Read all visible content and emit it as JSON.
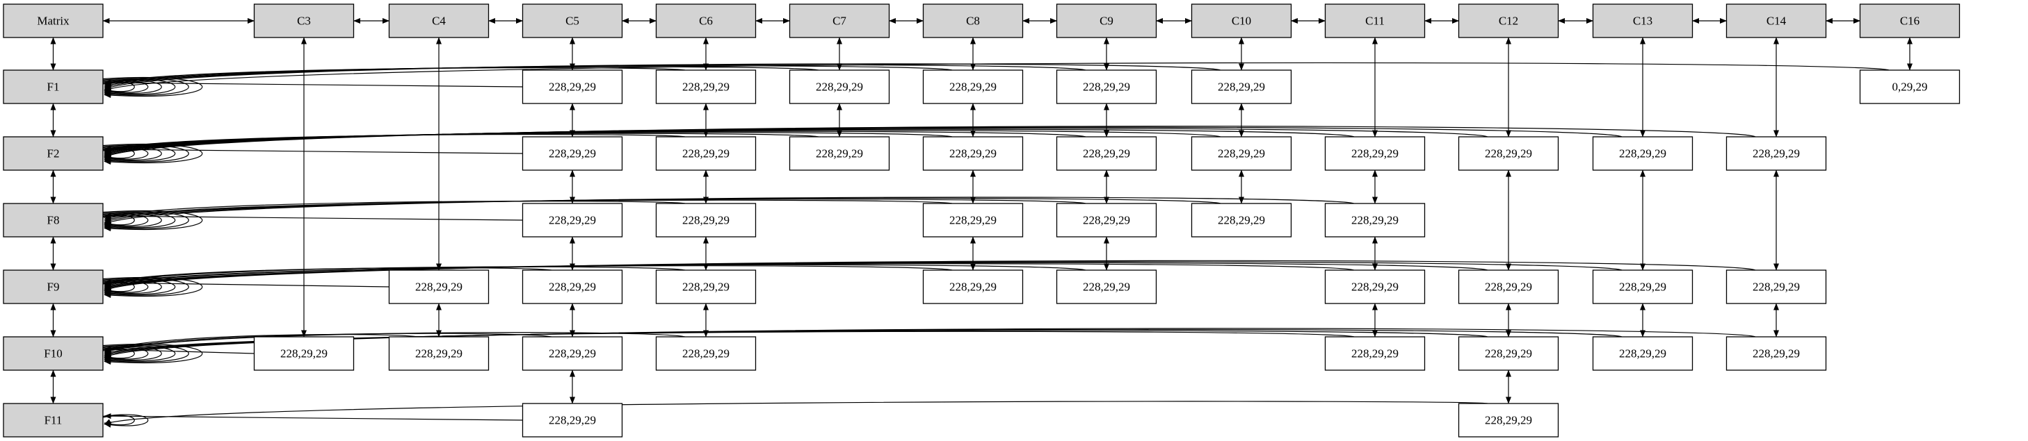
{
  "matrix_label": "Matrix",
  "header_fill": "#d3d3d3",
  "cell_fill": "#ffffff",
  "stroke_color": "#000000",
  "columns": [
    {
      "id": "C3",
      "label": "C3"
    },
    {
      "id": "C4",
      "label": "C4"
    },
    {
      "id": "C5",
      "label": "C5"
    },
    {
      "id": "C6",
      "label": "C6"
    },
    {
      "id": "C7",
      "label": "C7"
    },
    {
      "id": "C8",
      "label": "C8"
    },
    {
      "id": "C9",
      "label": "C9"
    },
    {
      "id": "C10",
      "label": "C10"
    },
    {
      "id": "C11",
      "label": "C11"
    },
    {
      "id": "C12",
      "label": "C12"
    },
    {
      "id": "C13",
      "label": "C13"
    },
    {
      "id": "C14",
      "label": "C14"
    },
    {
      "id": "C16",
      "label": "C16"
    }
  ],
  "rows": [
    {
      "id": "F1",
      "label": "F1"
    },
    {
      "id": "F2",
      "label": "F2"
    },
    {
      "id": "F8",
      "label": "F8"
    },
    {
      "id": "F9",
      "label": "F9"
    },
    {
      "id": "F10",
      "label": "F10"
    },
    {
      "id": "F11",
      "label": "F11"
    }
  ],
  "cells": [
    {
      "row": "F1",
      "col": "C5",
      "label": "228,29,29"
    },
    {
      "row": "F1",
      "col": "C6",
      "label": "228,29,29"
    },
    {
      "row": "F1",
      "col": "C7",
      "label": "228,29,29"
    },
    {
      "row": "F1",
      "col": "C8",
      "label": "228,29,29"
    },
    {
      "row": "F1",
      "col": "C9",
      "label": "228,29,29"
    },
    {
      "row": "F1",
      "col": "C10",
      "label": "228,29,29"
    },
    {
      "row": "F1",
      "col": "C16",
      "label": "0,29,29"
    },
    {
      "row": "F2",
      "col": "C5",
      "label": "228,29,29"
    },
    {
      "row": "F2",
      "col": "C6",
      "label": "228,29,29"
    },
    {
      "row": "F2",
      "col": "C7",
      "label": "228,29,29"
    },
    {
      "row": "F2",
      "col": "C8",
      "label": "228,29,29"
    },
    {
      "row": "F2",
      "col": "C9",
      "label": "228,29,29"
    },
    {
      "row": "F2",
      "col": "C10",
      "label": "228,29,29"
    },
    {
      "row": "F2",
      "col": "C11",
      "label": "228,29,29"
    },
    {
      "row": "F2",
      "col": "C12",
      "label": "228,29,29"
    },
    {
      "row": "F2",
      "col": "C13",
      "label": "228,29,29"
    },
    {
      "row": "F2",
      "col": "C14",
      "label": "228,29,29"
    },
    {
      "row": "F8",
      "col": "C5",
      "label": "228,29,29"
    },
    {
      "row": "F8",
      "col": "C6",
      "label": "228,29,29"
    },
    {
      "row": "F8",
      "col": "C8",
      "label": "228,29,29"
    },
    {
      "row": "F8",
      "col": "C9",
      "label": "228,29,29"
    },
    {
      "row": "F8",
      "col": "C10",
      "label": "228,29,29"
    },
    {
      "row": "F8",
      "col": "C11",
      "label": "228,29,29"
    },
    {
      "row": "F9",
      "col": "C4",
      "label": "228,29,29"
    },
    {
      "row": "F9",
      "col": "C5",
      "label": "228,29,29"
    },
    {
      "row": "F9",
      "col": "C6",
      "label": "228,29,29"
    },
    {
      "row": "F9",
      "col": "C8",
      "label": "228,29,29"
    },
    {
      "row": "F9",
      "col": "C9",
      "label": "228,29,29"
    },
    {
      "row": "F9",
      "col": "C11",
      "label": "228,29,29"
    },
    {
      "row": "F9",
      "col": "C12",
      "label": "228,29,29"
    },
    {
      "row": "F9",
      "col": "C13",
      "label": "228,29,29"
    },
    {
      "row": "F9",
      "col": "C14",
      "label": "228,29,29"
    },
    {
      "row": "F10",
      "col": "C3",
      "label": "228,29,29"
    },
    {
      "row": "F10",
      "col": "C4",
      "label": "228,29,29"
    },
    {
      "row": "F10",
      "col": "C5",
      "label": "228,29,29"
    },
    {
      "row": "F10",
      "col": "C6",
      "label": "228,29,29"
    },
    {
      "row": "F10",
      "col": "C11",
      "label": "228,29,29"
    },
    {
      "row": "F10",
      "col": "C12",
      "label": "228,29,29"
    },
    {
      "row": "F10",
      "col": "C13",
      "label": "228,29,29"
    },
    {
      "row": "F10",
      "col": "C14",
      "label": "228,29,29"
    },
    {
      "row": "F11",
      "col": "C5",
      "label": "228,29,29"
    },
    {
      "row": "F11",
      "col": "C12",
      "label": "228,29,29"
    }
  ]
}
